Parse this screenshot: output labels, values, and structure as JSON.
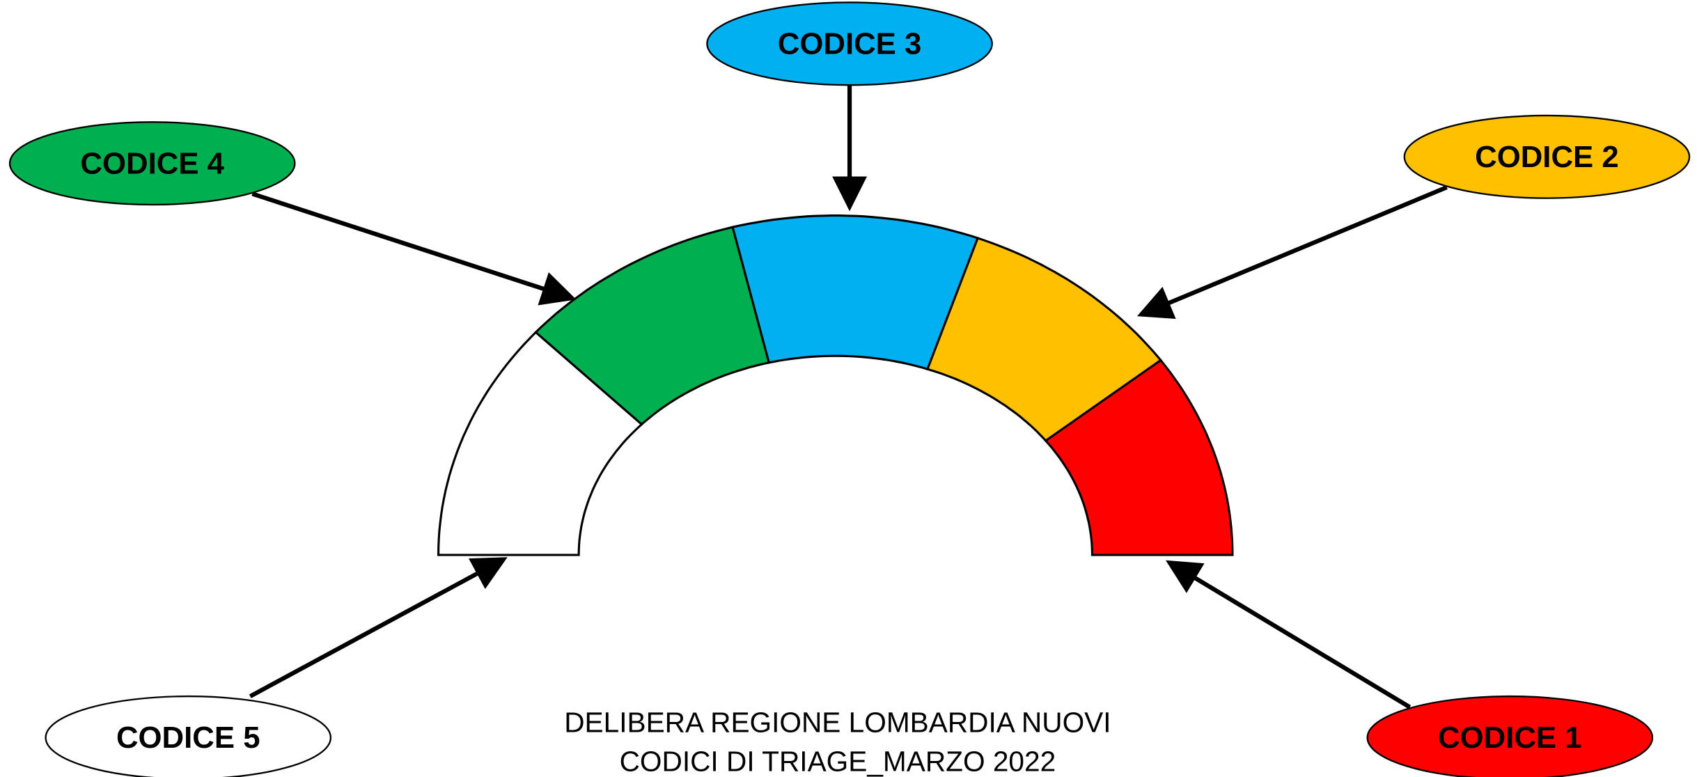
{
  "nodes": [
    {
      "label": "CODICE 3"
    },
    {
      "label": "CODICE 4"
    },
    {
      "label": "CODICE 2"
    },
    {
      "label": "CODICE 5"
    },
    {
      "label": "CODICE 1"
    }
  ],
  "caption": {
    "lines": [
      "DELIBERA REGIONE LOMBARDIA NUOVI",
      "CODICI DI TRIAGE_MARZO 2022"
    ]
  }
}
